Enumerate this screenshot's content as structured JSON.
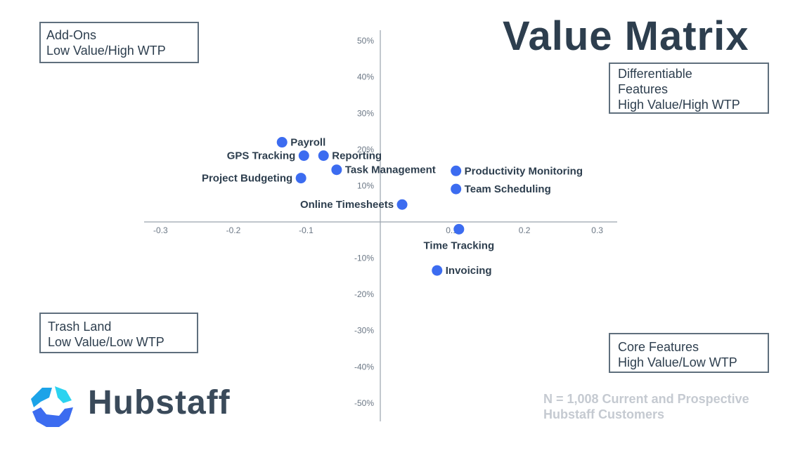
{
  "title": "Value Matrix",
  "quadrants": {
    "top_left": [
      "Add-Ons",
      "Low Value/High WTP"
    ],
    "top_right": [
      "Differentiable",
      "Features",
      "High Value/High WTP"
    ],
    "bottom_left": [
      "Trash Land",
      "Low Value/Low WTP"
    ],
    "bottom_right": [
      "Core Features",
      "High Value/Low WTP"
    ]
  },
  "note": [
    "N = 1,008 Current and Prospective",
    "Hubstaff Customers"
  ],
  "logo": {
    "word": "Hubstaff",
    "icon": "hubstaff-logo-icon",
    "colors": [
      "#1ca3e8",
      "#3c6cf0",
      "#2bd3f0"
    ]
  },
  "colors": {
    "point": "#3c6cf0",
    "axis": "#9aa3ad",
    "text": "#2d3e4e"
  },
  "chart_data": {
    "type": "scatter",
    "title": "Value Matrix",
    "xlabel": "",
    "ylabel": "",
    "xlim": [
      -0.33,
      0.32
    ],
    "ylim": [
      -0.54,
      0.54
    ],
    "x_ticks": [
      -0.3,
      -0.2,
      -0.1,
      0.1,
      0.2,
      0.3
    ],
    "x_tick_labels": [
      "-0.3",
      "-0.2",
      "-0.1",
      "0.1",
      "0.2",
      "0.3"
    ],
    "y_ticks": [
      0.5,
      0.4,
      0.3,
      0.2,
      0.1,
      -0.1,
      -0.2,
      -0.3,
      -0.4,
      -0.5
    ],
    "y_tick_labels": [
      "50%",
      "40%",
      "30%",
      "20%",
      "10%",
      "-10%",
      "-20%",
      "-30%",
      "-40%",
      "-50%"
    ],
    "grid": false,
    "points": [
      {
        "label": "Payroll",
        "x": -0.135,
        "y": 0.22,
        "label_side": "right"
      },
      {
        "label": "GPS Tracking",
        "x": -0.105,
        "y": 0.183,
        "label_side": "left"
      },
      {
        "label": "Reporting",
        "x": -0.078,
        "y": 0.183,
        "label_side": "right"
      },
      {
        "label": "Task Management",
        "x": -0.06,
        "y": 0.144,
        "label_side": "right"
      },
      {
        "label": "Project Budgeting",
        "x": -0.109,
        "y": 0.121,
        "label_side": "left"
      },
      {
        "label": "Online Timesheets",
        "x": 0.03,
        "y": 0.048,
        "label_side": "left"
      },
      {
        "label": "Productivity Monitoring",
        "x": 0.104,
        "y": 0.141,
        "label_side": "right"
      },
      {
        "label": "Team Scheduling",
        "x": 0.104,
        "y": 0.091,
        "label_side": "right"
      },
      {
        "label": "Time Tracking",
        "x": 0.108,
        "y": -0.02,
        "label_side": "below"
      },
      {
        "label": "Invoicing",
        "x": 0.078,
        "y": -0.134,
        "label_side": "right"
      }
    ]
  }
}
